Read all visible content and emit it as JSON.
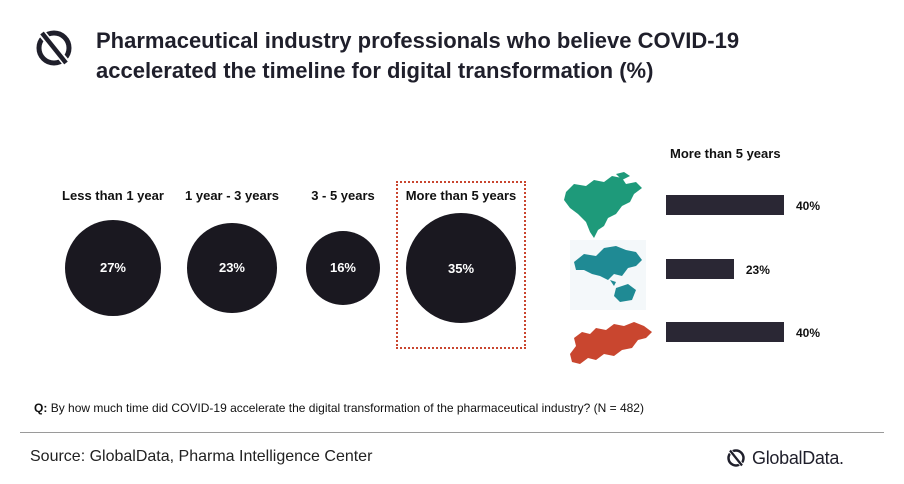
{
  "header": {
    "title": "Pharmaceutical industry professionals who believe COVID-19 accelerated the timeline for digital transformation (%)"
  },
  "chart_data": [
    {
      "type": "bubble",
      "categories": [
        "Less than 1 year",
        "1 year - 3 years",
        "3 - 5 years",
        "More than 5 years"
      ],
      "values": [
        27,
        23,
        16,
        35
      ],
      "value_labels": [
        "27%",
        "23%",
        "16%",
        "35%"
      ],
      "highlighted_category": "More than 5 years",
      "colors": {
        "bubble": "#1a1820",
        "highlight_border": "#c9462f"
      }
    },
    {
      "type": "bar",
      "orientation": "horizontal",
      "title": "More than 5 years",
      "categories": [
        "North America",
        "Asia-Pacific",
        "Europe"
      ],
      "category_icons": [
        "north-america-map-icon",
        "asia-pacific-map-icon",
        "europe-map-icon"
      ],
      "values": [
        40,
        23,
        40
      ],
      "value_labels": [
        "40%",
        "23%",
        "40%"
      ],
      "colors": {
        "bar": "#2a2734",
        "north_america": "#1e9a7a",
        "asia_pacific": "#1f8a94",
        "europe": "#c9462f"
      }
    }
  ],
  "footer": {
    "question_prefix": "Q:",
    "question_text": "By how much time did COVID-19 accelerate the digital transformation of the pharmaceutical industry? (N = 482)",
    "source": "Source: GlobalData, Pharma Intelligence Center",
    "brand": "GlobalData."
  }
}
